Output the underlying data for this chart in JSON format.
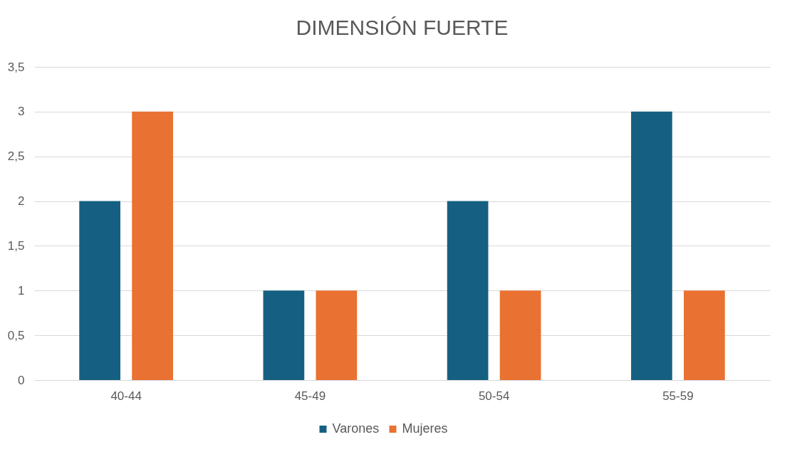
{
  "chart_data": {
    "type": "bar",
    "title": "DIMENSIÓN FUERTE",
    "categories": [
      "40-44",
      "45-49",
      "50-54",
      "55-59"
    ],
    "series": [
      {
        "name": "Varones",
        "color": "#156082",
        "values": [
          2,
          1,
          2,
          3
        ]
      },
      {
        "name": "Mujeres",
        "color": "#e97132",
        "values": [
          3,
          1,
          1,
          1
        ]
      }
    ],
    "ylim": [
      0,
      3.5
    ],
    "yticks": [
      0,
      {
        "value": 0.5,
        "label": "0,5"
      },
      1,
      {
        "value": 1.5,
        "label": "1,5"
      },
      2,
      {
        "value": 2.5,
        "label": "2,5"
      },
      3,
      {
        "value": 3.5,
        "label": "3,5"
      }
    ],
    "grid": "y",
    "legend": "bottom"
  }
}
